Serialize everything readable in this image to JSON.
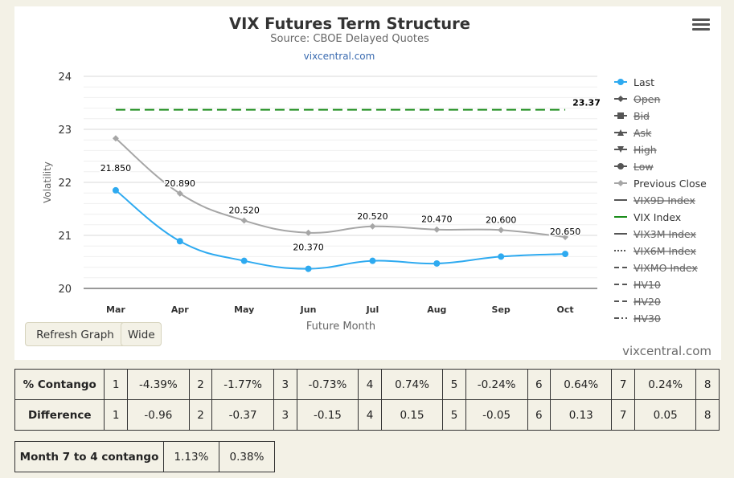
{
  "chart_data": {
    "type": "line",
    "title": "VIX Futures Term Structure",
    "subtitle": "Source: CBOE Delayed Quotes",
    "credit_link": "vixcentral.com",
    "xlabel": "Future Month",
    "ylabel": "Volatility",
    "categories": [
      "Mar",
      "Apr",
      "May",
      "Jun",
      "Jul",
      "Aug",
      "Sep",
      "Oct"
    ],
    "ylim": [
      20,
      24
    ],
    "yticks": [
      20,
      21,
      22,
      23,
      24
    ],
    "grid": true,
    "legend_position": "right",
    "series": [
      {
        "name": "Last",
        "values": [
          21.85,
          20.89,
          20.52,
          20.37,
          20.52,
          20.47,
          20.6,
          20.65
        ],
        "labels": [
          "21.850",
          "20.890",
          "20.520",
          "20.370",
          "20.520",
          "20.470",
          "20.600",
          "20.650"
        ],
        "color": "#2eaaf0",
        "visible": true
      },
      {
        "name": "Previous Close",
        "values": [
          22.83,
          21.79,
          21.28,
          21.05,
          21.17,
          21.11,
          21.1,
          20.97
        ],
        "color": "#a6a6a6",
        "visible": true
      },
      {
        "name": "VIX Index",
        "values": [
          23.37,
          23.37,
          23.37,
          23.37,
          23.37,
          23.37,
          23.37,
          23.37
        ],
        "end_label": "23.37",
        "color": "#1a8c1a",
        "visible": true
      }
    ],
    "legend": [
      {
        "name": "Last",
        "marker": "circle",
        "line": "solid",
        "visible": true,
        "color": "#2eaaf0"
      },
      {
        "name": "Open",
        "marker": "diamond",
        "line": "solid",
        "visible": false,
        "color": "#555555"
      },
      {
        "name": "Bid",
        "marker": "square",
        "line": "solid",
        "visible": false,
        "color": "#555555"
      },
      {
        "name": "Ask",
        "marker": "triangle",
        "line": "solid",
        "visible": false,
        "color": "#555555"
      },
      {
        "name": "High",
        "marker": "triangle-down",
        "line": "solid",
        "visible": false,
        "color": "#555555"
      },
      {
        "name": "Low",
        "marker": "circle",
        "line": "solid",
        "visible": false,
        "color": "#555555"
      },
      {
        "name": "Previous Close",
        "marker": "diamond",
        "line": "solid",
        "visible": true,
        "color": "#a6a6a6"
      },
      {
        "name": "VIX9D Index",
        "marker": "none",
        "line": "solid",
        "visible": false,
        "color": "#555555"
      },
      {
        "name": "VIX Index",
        "marker": "none",
        "line": "solid",
        "visible": true,
        "color": "#1a8c1a"
      },
      {
        "name": "VIX3M Index",
        "marker": "none",
        "line": "solid",
        "visible": false,
        "color": "#555555"
      },
      {
        "name": "VIX6M Index",
        "marker": "none",
        "line": "dotted",
        "visible": false,
        "color": "#555555"
      },
      {
        "name": "VIXMO Index",
        "marker": "none",
        "line": "dashed",
        "visible": false,
        "color": "#555555"
      },
      {
        "name": "HV10",
        "marker": "none",
        "line": "dashed",
        "visible": false,
        "color": "#555555"
      },
      {
        "name": "HV20",
        "marker": "none",
        "line": "dashed",
        "visible": false,
        "color": "#555555"
      },
      {
        "name": "HV30",
        "marker": "none",
        "line": "dashdot",
        "visible": false,
        "color": "#555555"
      }
    ]
  },
  "buttons": {
    "refresh": "Refresh Graph",
    "wide": "Wide"
  },
  "watermark": "vixcentral.com",
  "stats": {
    "contango": {
      "label": "% Contango",
      "cells": [
        {
          "n": "1",
          "v": "-4.39%"
        },
        {
          "n": "2",
          "v": "-1.77%"
        },
        {
          "n": "3",
          "v": "-0.73%"
        },
        {
          "n": "4",
          "v": "0.74%"
        },
        {
          "n": "5",
          "v": "-0.24%"
        },
        {
          "n": "6",
          "v": "0.64%"
        },
        {
          "n": "7",
          "v": "0.24%"
        },
        {
          "n": "8",
          "v": ""
        }
      ]
    },
    "difference": {
      "label": "Difference",
      "cells": [
        {
          "n": "1",
          "v": "-0.96"
        },
        {
          "n": "2",
          "v": "-0.37"
        },
        {
          "n": "3",
          "v": "-0.15"
        },
        {
          "n": "4",
          "v": "0.15"
        },
        {
          "n": "5",
          "v": "-0.05"
        },
        {
          "n": "6",
          "v": "0.13"
        },
        {
          "n": "7",
          "v": "0.05"
        },
        {
          "n": "8",
          "v": ""
        }
      ]
    }
  },
  "month7to4": {
    "label": "Month 7 to 4 contango",
    "v1": "1.13%",
    "v2": "0.38%"
  }
}
